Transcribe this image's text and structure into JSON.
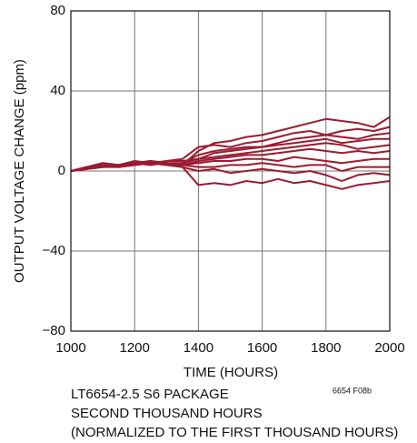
{
  "chart_data": {
    "type": "line",
    "y_label": "OUTPUT VOLTAGE CHANGE (ppm)",
    "x_label": "TIME (HOURS)",
    "notes": [
      "LT6654-2.5 S6 PACKAGE",
      "SECOND THOUSAND HOURS",
      "(NORMALIZED TO THE FIRST THOUSAND HOURS)"
    ],
    "figure_id": "6654 F08b",
    "x": [
      1000,
      1050,
      1100,
      1150,
      1200,
      1250,
      1300,
      1350,
      1400,
      1450,
      1500,
      1550,
      1600,
      1650,
      1700,
      1750,
      1800,
      1850,
      1900,
      1950,
      2000
    ],
    "series": [
      {
        "color": "#9b1b30",
        "values": [
          0,
          1,
          3,
          2,
          4,
          5,
          4,
          3,
          10,
          14,
          15,
          17,
          18,
          20,
          22,
          24,
          26,
          25,
          24,
          22,
          27
        ]
      },
      {
        "color": "#9b1b30",
        "values": [
          0,
          2,
          4,
          3,
          5,
          4,
          5,
          6,
          12,
          13,
          12,
          14,
          15,
          17,
          19,
          20,
          18,
          20,
          21,
          20,
          22
        ]
      },
      {
        "color": "#9b1b30",
        "values": [
          0,
          1,
          3,
          2,
          3,
          5,
          4,
          4,
          8,
          10,
          11,
          12,
          12,
          14,
          16,
          17,
          18,
          17,
          16,
          18,
          19
        ]
      },
      {
        "color": "#9b1b30",
        "values": [
          0,
          1,
          2,
          3,
          4,
          3,
          5,
          5,
          6,
          9,
          10,
          11,
          12,
          13,
          14,
          15,
          16,
          14,
          15,
          16,
          16
        ]
      },
      {
        "color": "#9b1b30",
        "values": [
          0,
          2,
          3,
          2,
          4,
          5,
          3,
          4,
          6,
          7,
          8,
          9,
          10,
          11,
          12,
          13,
          14,
          13,
          11,
          12,
          13
        ]
      },
      {
        "color": "#9b1b30",
        "values": [
          0,
          1,
          2,
          3,
          3,
          4,
          4,
          3,
          5,
          6,
          7,
          8,
          8,
          9,
          10,
          11,
          10,
          9,
          10,
          9,
          10
        ]
      },
      {
        "color": "#9b1b30",
        "values": [
          0,
          1,
          3,
          2,
          4,
          3,
          4,
          3,
          4,
          5,
          5,
          6,
          6,
          5,
          7,
          6,
          5,
          4,
          5,
          6,
          6
        ]
      },
      {
        "color": "#9b1b30",
        "values": [
          0,
          1,
          2,
          2,
          3,
          4,
          3,
          3,
          2,
          2,
          3,
          3,
          4,
          3,
          2,
          3,
          3,
          0,
          2,
          2,
          2
        ]
      },
      {
        "color": "#9b1b30",
        "values": [
          0,
          2,
          3,
          2,
          4,
          4,
          3,
          2,
          0,
          1,
          -1,
          0,
          1,
          0,
          -1,
          0,
          -2,
          -5,
          -2,
          -1,
          -2
        ]
      },
      {
        "color": "#9b1b30",
        "values": [
          0,
          1,
          3,
          2,
          3,
          4,
          3,
          2,
          -7,
          -6,
          -7,
          -5,
          -6,
          -4,
          -6,
          -5,
          -7,
          -9,
          -7,
          -6,
          -5
        ]
      }
    ],
    "xlim": [
      1000,
      2000
    ],
    "xticks": [
      1000,
      1200,
      1400,
      1600,
      1800,
      2000
    ],
    "ylim": [
      -80,
      80
    ],
    "yticks": [
      {
        "value": -80,
        "label": "−80"
      },
      {
        "value": -40,
        "label": "−40"
      },
      0,
      40,
      80
    ],
    "grid": true
  }
}
